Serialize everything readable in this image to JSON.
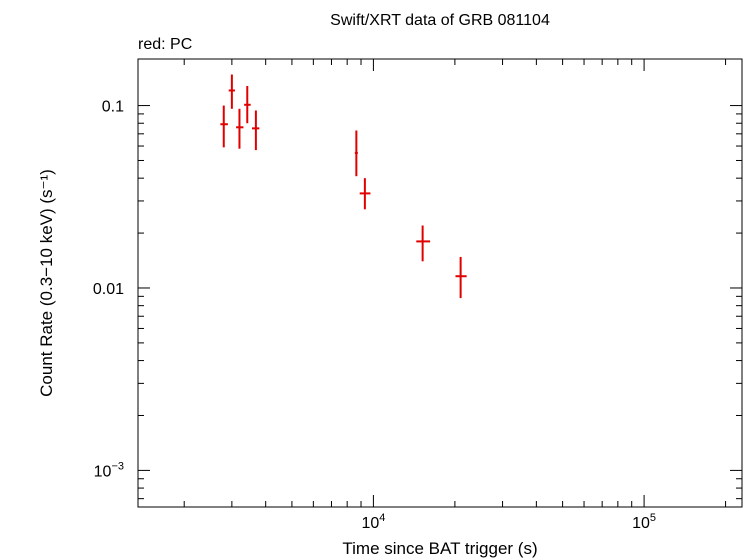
{
  "chart_data": {
    "type": "scatter",
    "title": "Swift/XRT data of GRB 081104",
    "subtitle": "red: PC",
    "xlabel": "Time since BAT trigger (s)",
    "ylabel": "Count Rate (0.3−10 keV) (s⁻¹)",
    "x_scale": "log",
    "y_scale": "log",
    "xlim": [
      1350,
      230000
    ],
    "ylim": [
      0.00063,
      0.18
    ],
    "x_ticks": [
      {
        "value": 10000,
        "base": "10",
        "exp": "4"
      },
      {
        "value": 100000,
        "base": "10",
        "exp": "5"
      }
    ],
    "y_ticks": [
      {
        "value": 0.1,
        "label": "0.1"
      },
      {
        "value": 0.01,
        "label": "0.01"
      },
      {
        "value": 0.001,
        "base": "10",
        "exp": "−3"
      }
    ],
    "grid": false,
    "series": [
      {
        "color": "#e00000",
        "points": [
          {
            "x": 2800,
            "xlo": 2720,
            "xhi": 2900,
            "y": 0.079,
            "ylo": 0.059,
            "yhi": 0.1
          },
          {
            "x": 3000,
            "xlo": 2920,
            "xhi": 3080,
            "y": 0.121,
            "ylo": 0.096,
            "yhi": 0.148
          },
          {
            "x": 3200,
            "xlo": 3110,
            "xhi": 3310,
            "y": 0.076,
            "ylo": 0.058,
            "yhi": 0.096
          },
          {
            "x": 3420,
            "xlo": 3330,
            "xhi": 3520,
            "y": 0.101,
            "ylo": 0.08,
            "yhi": 0.128
          },
          {
            "x": 3680,
            "xlo": 3560,
            "xhi": 3790,
            "y": 0.075,
            "ylo": 0.057,
            "yhi": 0.094
          },
          {
            "x": 8650,
            "xlo": 8540,
            "xhi": 8760,
            "y": 0.055,
            "ylo": 0.041,
            "yhi": 0.073
          },
          {
            "x": 9300,
            "xlo": 8900,
            "xhi": 9750,
            "y": 0.033,
            "ylo": 0.027,
            "yhi": 0.04
          },
          {
            "x": 15200,
            "xlo": 14400,
            "xhi": 16200,
            "y": 0.018,
            "ylo": 0.014,
            "yhi": 0.022
          },
          {
            "x": 21000,
            "xlo": 20100,
            "xhi": 22100,
            "y": 0.0116,
            "ylo": 0.0088,
            "yhi": 0.0148
          }
        ]
      }
    ]
  }
}
